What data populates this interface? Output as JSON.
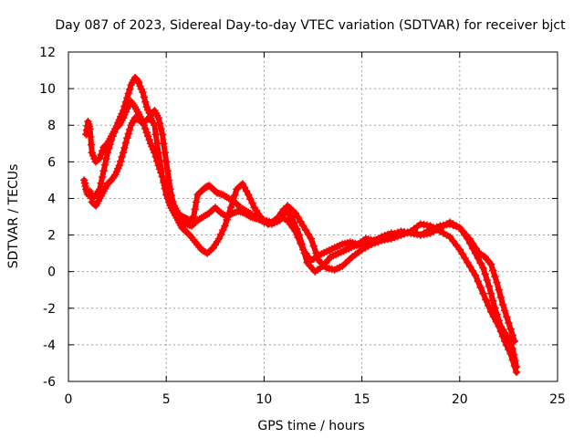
{
  "chart_data": {
    "type": "scatter",
    "title": "Day 087 of 2023, Sidereal Day-to-day VTEC variation (SDTVAR) for receiver bjct",
    "xlabel": "GPS time / hours",
    "ylabel": "SDTVAR / TECUs",
    "xlim": [
      0,
      25
    ],
    "ylim": [
      -6,
      12
    ],
    "xticks": [
      0,
      5,
      10,
      15,
      20,
      25
    ],
    "yticks": [
      -6,
      -4,
      -2,
      0,
      2,
      4,
      6,
      8,
      10,
      12
    ],
    "grid": true,
    "marker": "plus",
    "color": "#ff0000",
    "series": [
      {
        "name": "trace-a",
        "x": [
          0.8,
          0.9,
          1.0,
          1.1,
          1.2,
          1.4,
          1.6,
          1.8,
          2.0,
          2.2,
          2.4,
          2.6,
          2.8,
          3.0,
          3.2,
          3.4,
          3.5,
          3.6,
          3.8,
          4.0,
          4.2,
          4.4,
          4.6,
          4.8,
          5.0,
          5.2,
          5.4,
          5.6,
          5.8,
          6.0,
          6.3,
          6.6,
          6.9,
          7.2,
          7.5,
          7.8,
          8.1,
          8.4,
          8.7,
          9.0,
          9.3,
          9.6,
          10.0,
          10.4,
          10.8,
          11.2,
          11.6,
          12.0,
          12.4,
          12.8,
          13.2,
          13.6,
          14.0,
          14.4,
          14.8,
          15.2,
          15.6,
          16.0,
          16.5,
          17.0,
          17.5,
          18.0,
          18.5,
          19.0,
          19.5,
          20.0,
          20.4,
          20.8,
          21.2,
          21.5,
          21.8,
          22.1,
          22.4,
          22.7,
          22.9
        ],
        "y": [
          5.0,
          4.5,
          4.2,
          4.4,
          4.0,
          4.2,
          4.5,
          5.5,
          6.5,
          7.2,
          7.8,
          8.3,
          8.8,
          9.5,
          10.2,
          10.6,
          10.5,
          10.3,
          9.8,
          9.0,
          8.5,
          8.8,
          8.4,
          7.5,
          6.0,
          4.5,
          3.5,
          3.0,
          2.8,
          2.6,
          2.5,
          2.8,
          3.0,
          3.2,
          3.5,
          3.2,
          3.0,
          3.2,
          3.3,
          3.2,
          3.0,
          2.9,
          2.8,
          2.7,
          3.0,
          2.8,
          2.2,
          1.2,
          0.6,
          0.9,
          1.1,
          1.3,
          1.5,
          1.6,
          1.5,
          1.8,
          1.7,
          1.8,
          2.0,
          2.2,
          2.1,
          2.0,
          2.3,
          2.5,
          2.6,
          2.4,
          1.8,
          1.0,
          0.2,
          -0.8,
          -2.0,
          -3.0,
          -3.5,
          -4.2,
          -5.2
        ]
      },
      {
        "name": "trace-b",
        "x": [
          0.9,
          1.0,
          1.1,
          1.2,
          1.4,
          1.6,
          1.8,
          2.0,
          2.2,
          2.4,
          2.6,
          2.8,
          3.0,
          3.2,
          3.4,
          3.6,
          3.8,
          4.0,
          4.2,
          4.4,
          4.6,
          4.8,
          5.0,
          5.2,
          5.4,
          5.6,
          5.8,
          6.0,
          6.2,
          6.5,
          6.8,
          7.1,
          7.4,
          7.7,
          8.0,
          8.3,
          8.6,
          8.9,
          9.2,
          9.5,
          9.8,
          10.2,
          10.6,
          11.0,
          11.4,
          11.8,
          12.2,
          12.6,
          13.0,
          13.4,
          13.8,
          14.2,
          14.6,
          15.0,
          15.5,
          16.0,
          16.5,
          17.0,
          17.5,
          18.0,
          18.5,
          19.0,
          19.5,
          20.0,
          20.4,
          20.8,
          21.2,
          21.6,
          22.0,
          22.3,
          22.6,
          22.9
        ],
        "y": [
          7.5,
          8.2,
          7.8,
          6.5,
          6.0,
          6.2,
          6.8,
          7.0,
          7.4,
          7.8,
          8.0,
          8.4,
          8.9,
          9.3,
          9.0,
          8.6,
          8.2,
          7.6,
          7.0,
          6.5,
          5.8,
          5.2,
          4.2,
          3.6,
          3.2,
          2.8,
          2.4,
          2.2,
          2.0,
          1.6,
          1.2,
          1.0,
          1.3,
          1.8,
          2.5,
          3.5,
          4.5,
          4.8,
          4.2,
          3.5,
          3.0,
          2.6,
          2.8,
          3.4,
          3.0,
          2.0,
          0.5,
          0.0,
          0.3,
          0.8,
          1.0,
          1.2,
          1.4,
          1.5,
          1.6,
          1.9,
          2.1,
          2.0,
          2.2,
          2.6,
          2.5,
          2.2,
          1.9,
          1.2,
          0.5,
          -0.2,
          -1.2,
          -2.2,
          -3.0,
          -3.8,
          -4.5,
          -5.5
        ]
      },
      {
        "name": "trace-c",
        "x": [
          1.2,
          1.4,
          1.6,
          1.8,
          2.0,
          2.2,
          2.4,
          2.6,
          2.8,
          3.0,
          3.2,
          3.4,
          3.6,
          3.8,
          4.0,
          4.2,
          4.4,
          4.6,
          4.8,
          5.0,
          5.2,
          5.4,
          5.6,
          5.8,
          6.0,
          6.2,
          6.4,
          6.6,
          6.8,
          7.0,
          7.2,
          7.4,
          7.6,
          7.9,
          8.2,
          8.5,
          8.8,
          9.1,
          9.4,
          9.7,
          10.0,
          10.4,
          10.8,
          11.2,
          11.6,
          12.0,
          12.4,
          12.8,
          13.2,
          13.6,
          14.0,
          14.5,
          15.0,
          15.5,
          16.0,
          16.5,
          17.0,
          17.5,
          18.0,
          18.5,
          19.0,
          19.5,
          20.0,
          20.5,
          21.0,
          21.3,
          21.6,
          21.9,
          22.2,
          22.5,
          22.8
        ],
        "y": [
          3.8,
          3.6,
          4.0,
          4.4,
          4.8,
          5.0,
          5.3,
          5.8,
          6.5,
          7.3,
          8.0,
          8.4,
          8.3,
          8.1,
          8.3,
          8.4,
          8.0,
          6.5,
          5.2,
          4.5,
          4.0,
          3.6,
          3.2,
          3.0,
          2.9,
          2.8,
          3.0,
          4.2,
          4.4,
          4.6,
          4.7,
          4.5,
          4.3,
          4.2,
          4.0,
          3.8,
          3.5,
          3.3,
          3.1,
          2.9,
          2.7,
          2.6,
          2.8,
          3.6,
          3.2,
          2.5,
          1.8,
          0.6,
          0.2,
          0.1,
          0.3,
          0.8,
          1.2,
          1.5,
          1.7,
          1.8,
          2.0,
          2.2,
          2.0,
          2.1,
          2.4,
          2.7,
          2.4,
          1.8,
          1.0,
          0.8,
          0.4,
          -0.6,
          -1.8,
          -2.8,
          -3.8
        ]
      }
    ]
  }
}
